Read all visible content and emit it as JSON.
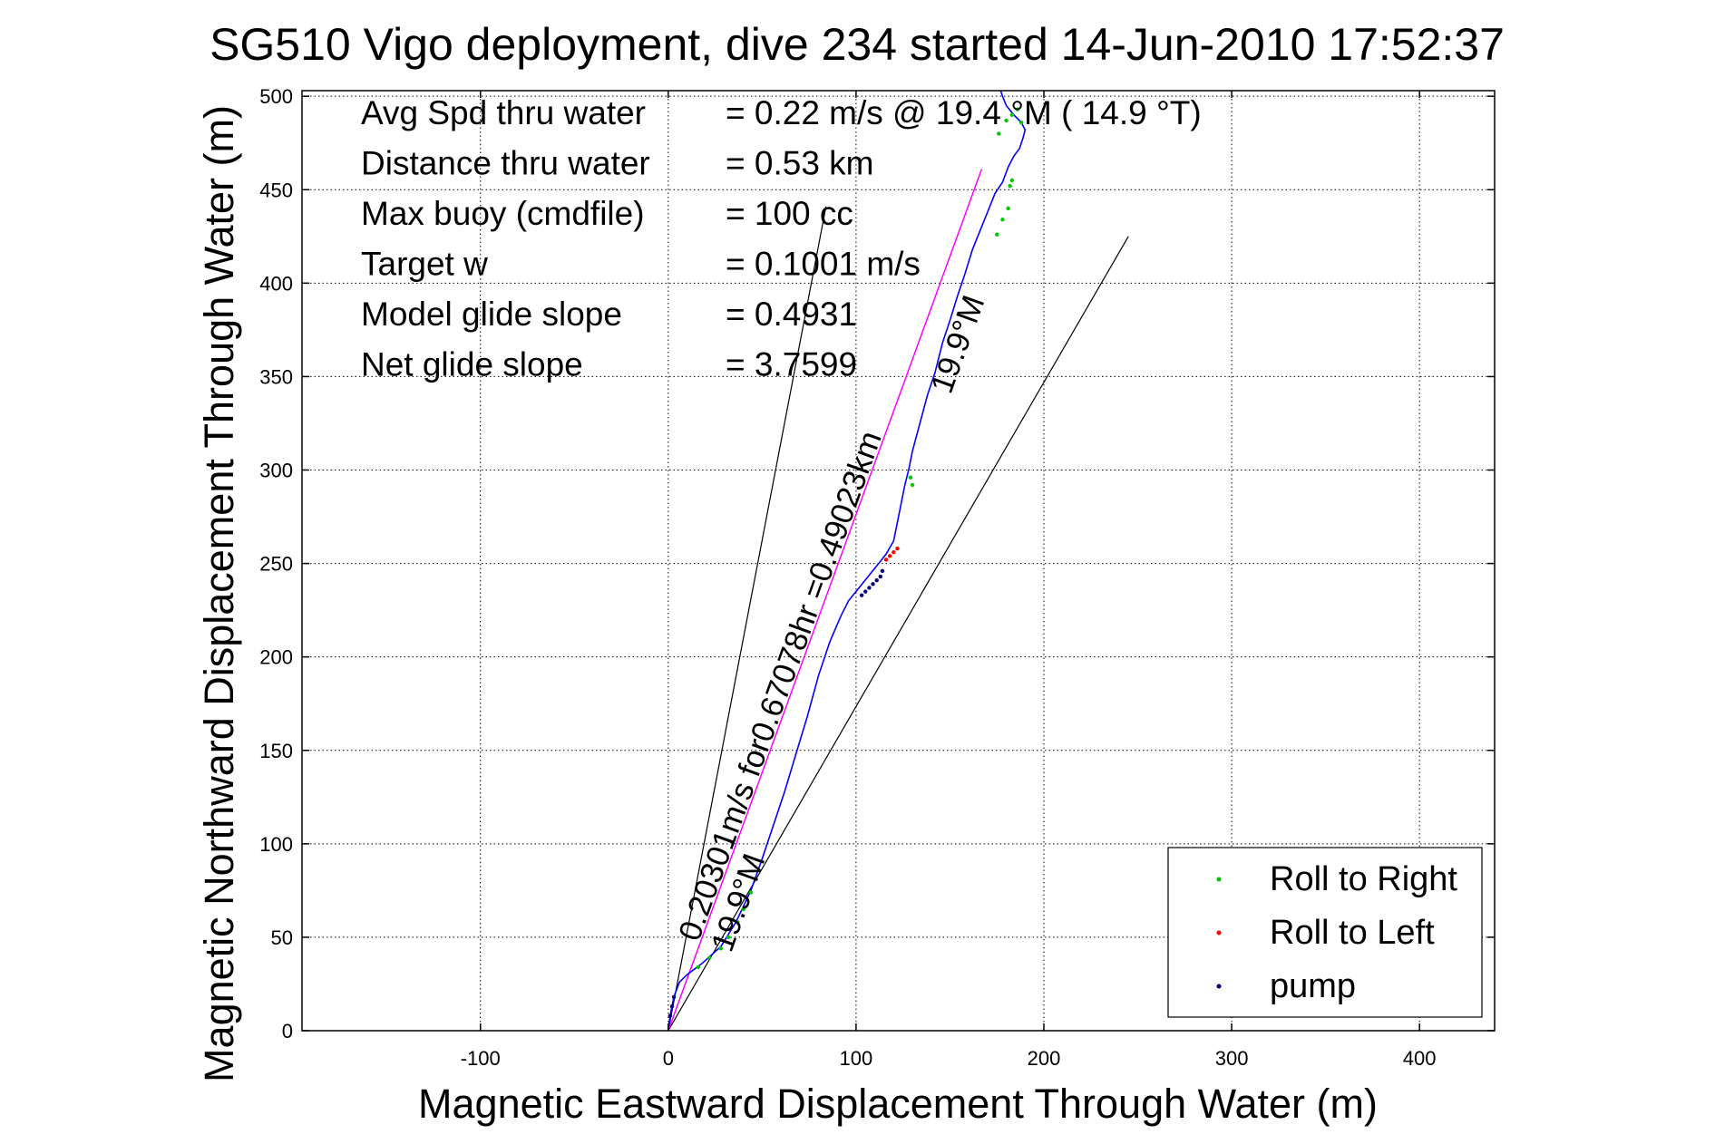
{
  "chart_data": {
    "type": "line",
    "title": "SG510 Vigo deployment, dive 234 started 14-Jun-2010 17:52:37",
    "xlabel": "Magnetic Eastward Displacement Through Water (m)",
    "ylabel": "Magnetic Northward Displacement Through Water (m)",
    "xlim": [
      -195,
      440
    ],
    "ylim": [
      0,
      503
    ],
    "xticks": [
      -100,
      0,
      100,
      200,
      300,
      400
    ],
    "yticks": [
      0,
      50,
      100,
      150,
      200,
      250,
      300,
      350,
      400,
      450,
      500
    ],
    "xtick_labels": [
      "-100",
      "0",
      "100",
      "200",
      "300",
      "400"
    ],
    "ytick_labels": [
      "0",
      "50",
      "100",
      "150",
      "200",
      "250",
      "300",
      "350",
      "400",
      "450",
      "500"
    ],
    "grid": true,
    "info_lines": [
      {
        "label": "Avg Spd thru water",
        "value": "=  0.22 m/s @  19.4 °M ( 14.9 °T)"
      },
      {
        "label": "Distance thru water",
        "value": "=  0.53 km"
      },
      {
        "label": "Max buoy (cmdfile)",
        "value": "= 100 cc"
      },
      {
        "label": "Target w",
        "value": "= 0.1001 m/s"
      },
      {
        "label": "Model glide slope",
        "value": "= 0.4931"
      },
      {
        "label": "Net glide slope",
        "value": "= 3.7599"
      }
    ],
    "annotations": {
      "speed_label": "0.20301m/s for0.67078hr =0.49023km",
      "heading_label_top": "19.9°M",
      "heading_label_bottom": "19.9°M"
    },
    "track": {
      "x": [
        0,
        1,
        3,
        6,
        10,
        18,
        28,
        36,
        44,
        50,
        56,
        62,
        68,
        74,
        80,
        86,
        92,
        96,
        100,
        104,
        108,
        112,
        116,
        120,
        122,
        124,
        126,
        128,
        130,
        134,
        138,
        142,
        146,
        150,
        154,
        158,
        162,
        166,
        170,
        174,
        178,
        181,
        182,
        184,
        187,
        189,
        190,
        188,
        184,
        180,
        178,
        177
      ],
      "y": [
        0,
        8,
        18,
        26,
        30,
        36,
        45,
        58,
        75,
        92,
        110,
        128,
        148,
        168,
        190,
        208,
        222,
        230,
        235,
        240,
        245,
        250,
        255,
        262,
        272,
        282,
        292,
        300,
        310,
        325,
        340,
        352,
        368,
        380,
        393,
        405,
        418,
        428,
        438,
        448,
        454,
        462,
        464,
        468,
        472,
        478,
        482,
        486,
        490,
        495,
        500,
        503
      ]
    },
    "bearing_line": {
      "heading_deg": 19.9,
      "length_m": 490.23
    },
    "envelope_lines": [
      {
        "to_x": 84,
        "to_y": 441
      },
      {
        "to_x": 245,
        "to_y": 425
      }
    ],
    "series": [
      {
        "name": "Roll to Right",
        "color": "#00c800",
        "points": [
          [
            16,
            34
          ],
          [
            22,
            39
          ],
          [
            28,
            44
          ],
          [
            32,
            50
          ],
          [
            37,
            58
          ],
          [
            40,
            65
          ],
          [
            44,
            74
          ],
          [
            175,
            426
          ],
          [
            178,
            434
          ],
          [
            181,
            440
          ],
          [
            182,
            452
          ],
          [
            183,
            455
          ],
          [
            176,
            480
          ],
          [
            180,
            487
          ],
          [
            183,
            490
          ],
          [
            186,
            493
          ],
          [
            188,
            486
          ],
          [
            130,
            292
          ],
          [
            129,
            296
          ]
        ]
      },
      {
        "name": "Roll to Left",
        "color": "#ff0000",
        "points": [
          [
            116,
            252
          ],
          [
            118,
            254
          ],
          [
            120,
            256
          ],
          [
            122,
            258
          ]
        ]
      },
      {
        "name": "pump",
        "color": "#000080",
        "points": [
          [
            103,
            233
          ],
          [
            105,
            235
          ],
          [
            107,
            237
          ],
          [
            109,
            239
          ],
          [
            111,
            241
          ],
          [
            113,
            243
          ],
          [
            114,
            246
          ],
          [
            1,
            8
          ],
          [
            2,
            13
          ],
          [
            3,
            18
          ]
        ]
      }
    ],
    "legend_position": "bottom-right",
    "colors": {
      "track": "#0000ff",
      "bearing_line": "#ff00ff",
      "envelope": "#000000",
      "grid": "#000000"
    }
  }
}
